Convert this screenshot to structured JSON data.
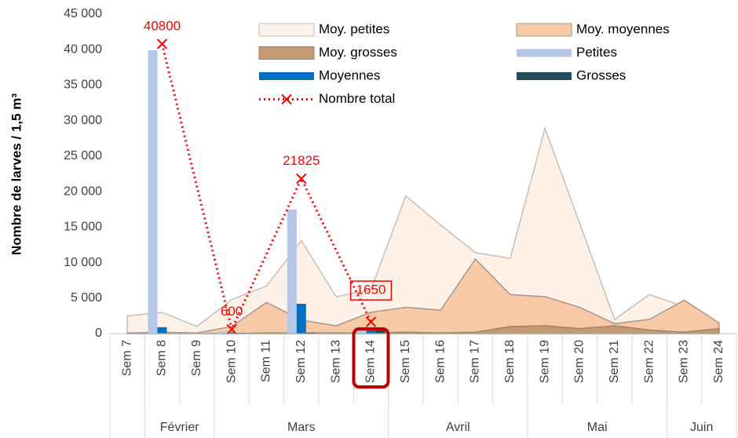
{
  "chart_data": {
    "type": "area_bar_line",
    "y_label": "Nombre de larves / 1,5 m³",
    "categories": [
      "Sem 7",
      "Sem 8",
      "Sem 9",
      "Sem 10",
      "Sem 11",
      "Sem 12",
      "Sem 13",
      "Sem 14",
      "Sem 15",
      "Sem 16",
      "Sem 17",
      "Sem 18",
      "Sem 19",
      "Sem 20",
      "Sem 21",
      "Sem 22",
      "Sem 23",
      "Sem 24"
    ],
    "months": [
      null,
      "Février",
      "Février",
      "Mars",
      "Mars",
      "Mars",
      "Mars",
      "Mars",
      "Avril",
      "Avril",
      "Avril",
      "Avril",
      "Mai",
      "Mai",
      "Mai",
      "Mai",
      "Juin",
      "Juin"
    ],
    "ylim": [
      0,
      45000
    ],
    "yticks": [
      0,
      {
        "value": 5000,
        "label": "5 000"
      },
      {
        "value": 10000,
        "label": "10 000"
      },
      {
        "value": 15000,
        "label": "15 000"
      },
      {
        "value": 20000,
        "label": "20 000"
      },
      {
        "value": 25000,
        "label": "25 000"
      },
      {
        "value": 30000,
        "label": "30 000"
      },
      {
        "value": 35000,
        "label": "35 000"
      },
      {
        "value": 40000,
        "label": "40 000"
      },
      {
        "value": 45000,
        "label": "45 000"
      }
    ],
    "grid": false,
    "highlight": 7,
    "series": [
      {
        "name": "Moy. petites",
        "kind": "area",
        "color": "#fdf1e8",
        "stroke": "#c9beb7",
        "values": [
          2500,
          3000,
          1000,
          4800,
          6700,
          13100,
          5200,
          6200,
          19400,
          15300,
          11400,
          10600,
          28900,
          15500,
          2000,
          5500,
          3800,
          1500
        ]
      },
      {
        "name": "Moy. moyennes",
        "kind": "area",
        "color": "#f7c9a6",
        "stroke": "#a8968a",
        "values": [
          100,
          200,
          100,
          1000,
          4400,
          1900,
          1100,
          3000,
          3700,
          3300,
          10500,
          5500,
          5200,
          3700,
          1400,
          2000,
          4700,
          1500
        ]
      },
      {
        "name": "Moy. grosses",
        "kind": "area",
        "color": "#c39a74",
        "stroke": "#a9805e",
        "values": [
          0,
          0,
          0,
          0,
          100,
          100,
          100,
          100,
          200,
          100,
          200,
          1000,
          1100,
          700,
          1100,
          500,
          200,
          700
        ]
      },
      {
        "name": "Petites",
        "kind": "bar",
        "color": "#b4c7e7",
        "values": [
          null,
          39900,
          null,
          300,
          null,
          17500,
          null,
          700,
          null,
          null,
          null,
          null,
          null,
          null,
          null,
          null,
          null,
          null
        ]
      },
      {
        "name": "Moyennes",
        "kind": "bar",
        "color": "#0070c0",
        "values": [
          null,
          900,
          null,
          200,
          null,
          4200,
          null,
          450,
          null,
          null,
          null,
          null,
          null,
          null,
          null,
          null,
          null,
          null
        ]
      },
      {
        "name": "Grosses",
        "kind": "bar",
        "color": "#1f4e5a",
        "values": [
          null,
          0,
          null,
          100,
          null,
          125,
          null,
          500,
          null,
          null,
          null,
          null,
          null,
          null,
          null,
          null,
          null,
          null
        ]
      },
      {
        "name": "Nombre total",
        "kind": "line",
        "color": "#ff0000",
        "connect_gaps": true,
        "labels": true,
        "values": [
          null,
          40800,
          null,
          600,
          null,
          21825,
          null,
          1650,
          null,
          null,
          null,
          null,
          null,
          null,
          null,
          null,
          null,
          null
        ]
      }
    ]
  }
}
